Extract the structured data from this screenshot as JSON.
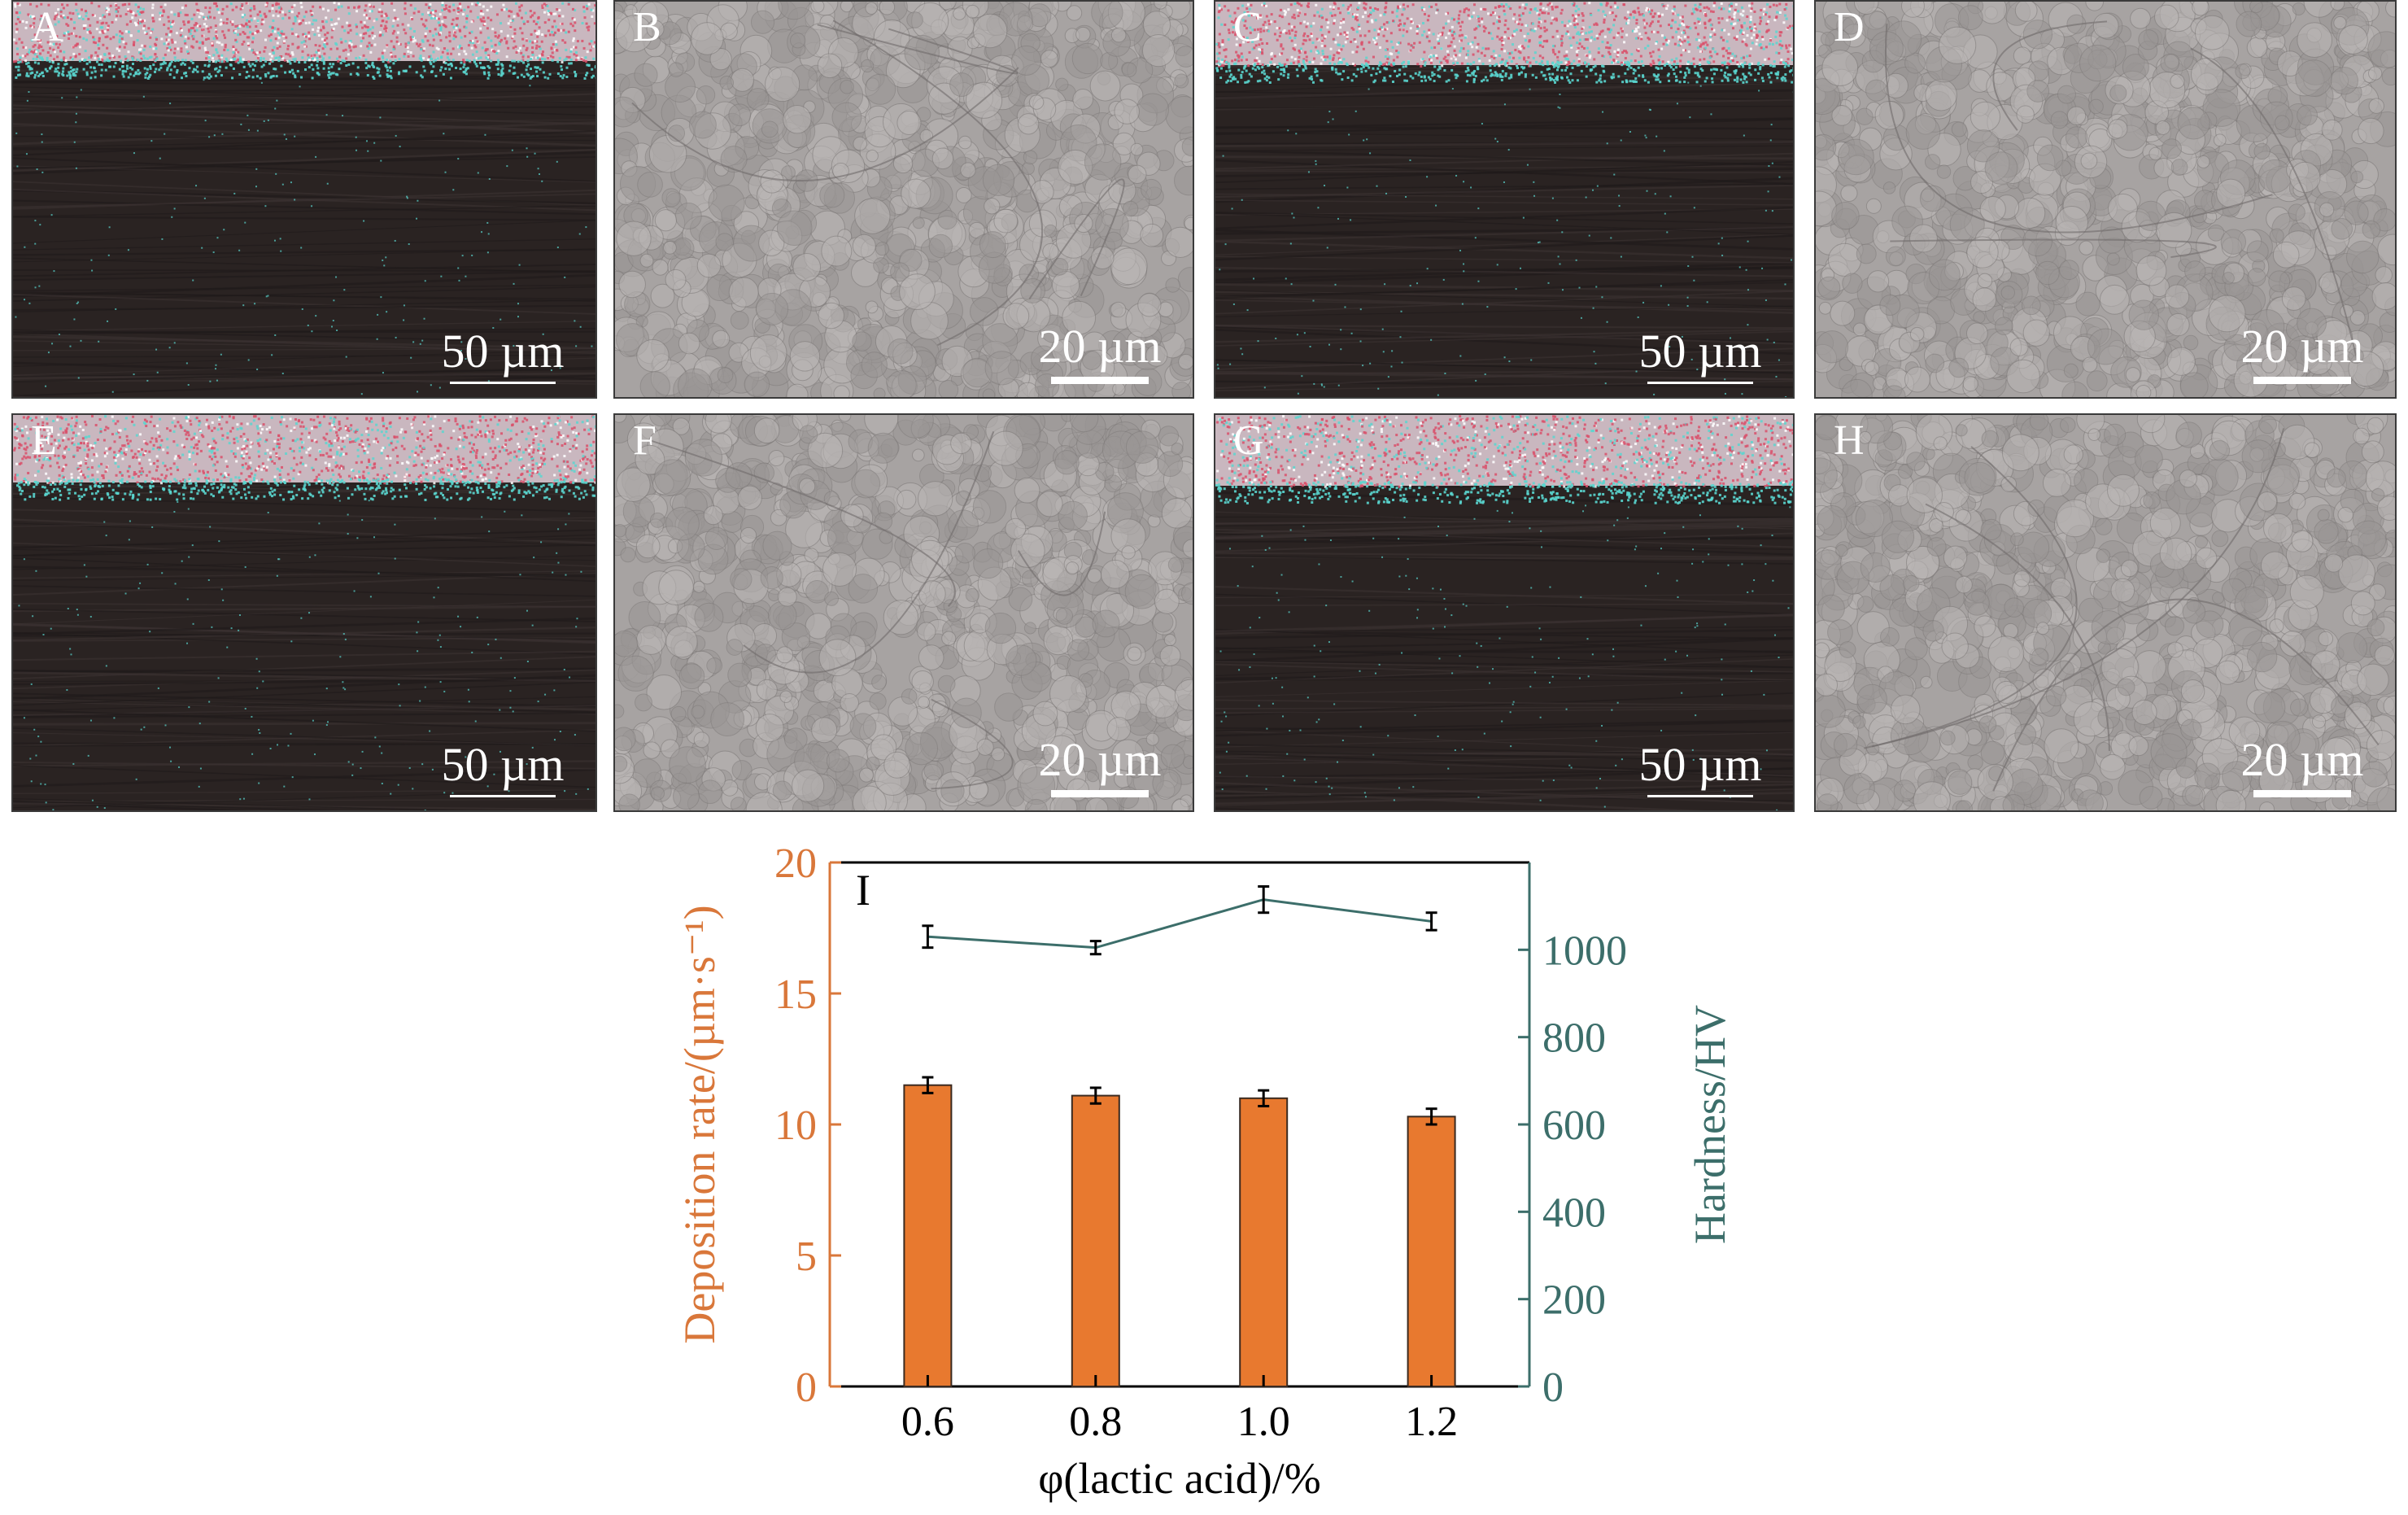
{
  "panels": [
    {
      "label": "A",
      "scale": "50 µm",
      "kind": "cross"
    },
    {
      "label": "B",
      "scale": "20 µm",
      "kind": "surface"
    },
    {
      "label": "C",
      "scale": "50 µm",
      "kind": "cross"
    },
    {
      "label": "D",
      "scale": "20 µm",
      "kind": "surface"
    },
    {
      "label": "E",
      "scale": "50 µm",
      "kind": "cross"
    },
    {
      "label": "F",
      "scale": "20 µm",
      "kind": "surface"
    },
    {
      "label": "G",
      "scale": "50 µm",
      "kind": "cross"
    },
    {
      "label": "H",
      "scale": "20 µm",
      "kind": "surface"
    }
  ],
  "colors": {
    "bar_fill": "#E8792F",
    "left_axis": "#D9773A",
    "right_axis": "#3C6E6A",
    "line": "#3C6E6A",
    "coating_red": "#d9506a",
    "coating_cyan": "#5ad6cf",
    "substrate": "#2a2322",
    "surface_gray": "#a7a3a2"
  },
  "chart_data": {
    "type": "bar",
    "panel_label": "I",
    "categories": [
      "0.6",
      "0.8",
      "1.0",
      "1.2"
    ],
    "xlabel": "φ(lactic acid)/%",
    "ylabel_left": "Deposition rate/(µm·s⁻¹)",
    "ylabel_right": "Hardness/HV",
    "ylim_left": [
      0,
      20
    ],
    "yticks_left": [
      "0",
      "5",
      "10",
      "15",
      "20"
    ],
    "ylim_right": [
      0,
      1200
    ],
    "yticks_right": [
      "0",
      "200",
      "400",
      "600",
      "800",
      "1000"
    ],
    "series": [
      {
        "values": [
          11.5,
          11.1,
          11.0,
          10.3
        ],
        "errors": [
          0.3,
          0.3,
          0.3,
          0.3
        ],
        "axis": "left",
        "style": "bar"
      },
      {
        "values": [
          1030,
          1005,
          1115,
          1065
        ],
        "errors": [
          25,
          15,
          30,
          20
        ],
        "axis": "right",
        "style": "line"
      }
    ]
  }
}
